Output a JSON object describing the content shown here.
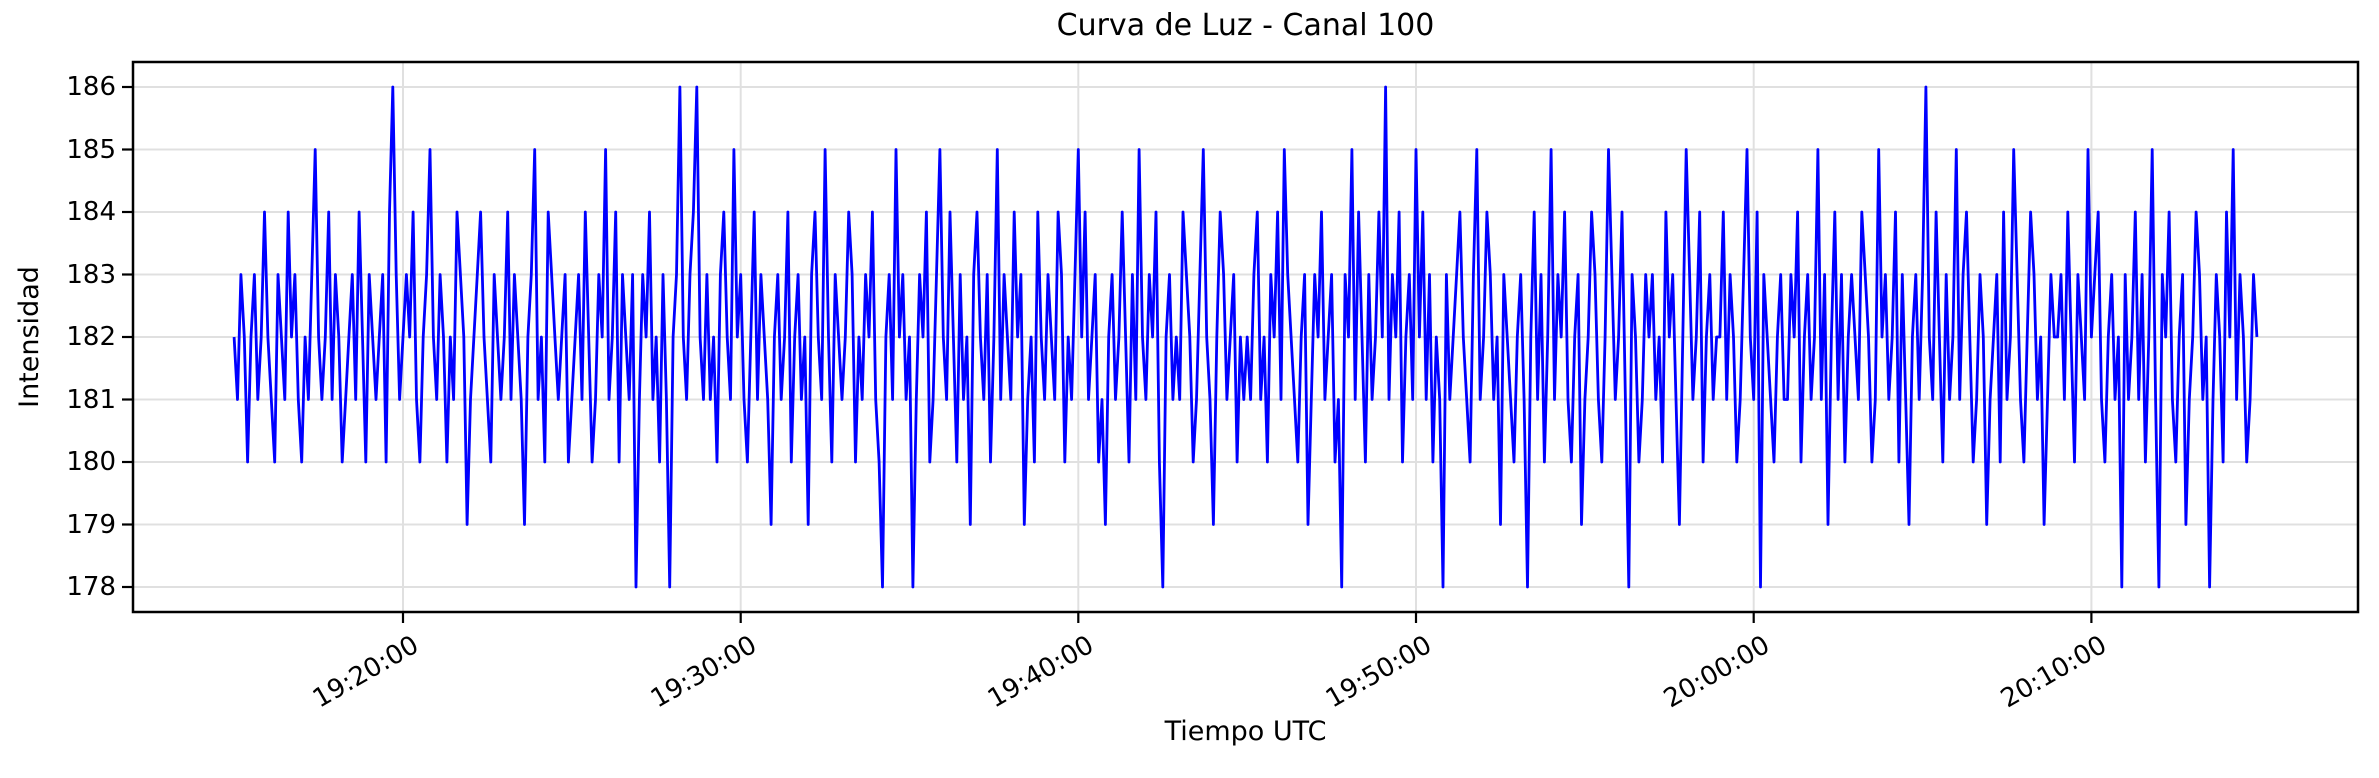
{
  "colors": {
    "line": "#0000ff",
    "grid": "#e0e0e0",
    "axes": "#000000",
    "text": "#000000",
    "background": "#ffffff"
  },
  "chart_data": {
    "type": "line",
    "title": "Curva de Luz - Canal 100",
    "xlabel": "Tiempo UTC",
    "ylabel": "Intensidad",
    "legend": null,
    "grid": true,
    "line_color": "#0000ff",
    "ylim": [
      177.6,
      186.4
    ],
    "y_ticks": [
      178,
      179,
      180,
      181,
      182,
      183,
      184,
      185,
      186
    ],
    "x_ticks": [
      {
        "label": "19:20:00",
        "offset_seconds": 300
      },
      {
        "label": "19:30:00",
        "offset_seconds": 900
      },
      {
        "label": "19:40:00",
        "offset_seconds": 1500
      },
      {
        "label": "19:50:00",
        "offset_seconds": 2100
      },
      {
        "label": "20:00:00",
        "offset_seconds": 2700
      },
      {
        "label": "20:10:00",
        "offset_seconds": 3300
      }
    ],
    "x_start_utc": "19:15:00",
    "x_step_seconds": 6,
    "x_margin_fraction": 0.05,
    "y_min_observed": 178,
    "y_max_observed": 186,
    "values": [
      182,
      181,
      183,
      182,
      180,
      182,
      183,
      181,
      182,
      184,
      182,
      181,
      180,
      183,
      182,
      181,
      184,
      182,
      183,
      181,
      180,
      182,
      181,
      183,
      185,
      182,
      181,
      182,
      184,
      181,
      183,
      182,
      180,
      181,
      182,
      183,
      181,
      184,
      182,
      180,
      183,
      182,
      181,
      182,
      183,
      180,
      184,
      186,
      183,
      181,
      182,
      183,
      182,
      184,
      181,
      180,
      182,
      183,
      185,
      182,
      181,
      183,
      182,
      180,
      182,
      181,
      184,
      183,
      182,
      179,
      181,
      182,
      183,
      184,
      182,
      181,
      180,
      183,
      182,
      181,
      182,
      184,
      181,
      183,
      182,
      181,
      179,
      182,
      183,
      185,
      181,
      182,
      180,
      184,
      183,
      182,
      181,
      182,
      183,
      180,
      181,
      182,
      183,
      181,
      184,
      182,
      180,
      181,
      183,
      182,
      185,
      181,
      182,
      184,
      180,
      183,
      182,
      181,
      183,
      178,
      181,
      183,
      182,
      184,
      181,
      182,
      180,
      183,
      181,
      178,
      182,
      183,
      186,
      182,
      181,
      183,
      184,
      186,
      182,
      181,
      183,
      181,
      182,
      180,
      183,
      184,
      182,
      181,
      185,
      182,
      183,
      181,
      180,
      182,
      184,
      181,
      183,
      182,
      181,
      179,
      182,
      183,
      181,
      182,
      184,
      180,
      182,
      183,
      181,
      182,
      179,
      183,
      184,
      182,
      181,
      185,
      182,
      180,
      183,
      182,
      181,
      182,
      184,
      183,
      180,
      182,
      181,
      183,
      182,
      184,
      181,
      180,
      178,
      182,
      183,
      181,
      185,
      182,
      183,
      181,
      182,
      178,
      181,
      183,
      182,
      184,
      180,
      181,
      183,
      185,
      182,
      181,
      184,
      182,
      180,
      183,
      181,
      182,
      179,
      183,
      184,
      182,
      181,
      183,
      180,
      182,
      185,
      181,
      183,
      182,
      181,
      184,
      182,
      183,
      179,
      181,
      182,
      180,
      184,
      182,
      181,
      183,
      182,
      181,
      184,
      183,
      180,
      182,
      181,
      183,
      185,
      182,
      184,
      181,
      182,
      183,
      180,
      181,
      179,
      182,
      183,
      181,
      182,
      184,
      182,
      180,
      183,
      181,
      185,
      182,
      181,
      183,
      182,
      184,
      180,
      178,
      182,
      183,
      181,
      182,
      181,
      184,
      183,
      182,
      180,
      181,
      183,
      185,
      182,
      181,
      179,
      182,
      184,
      183,
      181,
      182,
      183,
      180,
      182,
      181,
      182,
      181,
      183,
      184,
      181,
      182,
      180,
      183,
      182,
      184,
      181,
      185,
      183,
      182,
      181,
      180,
      182,
      183,
      179,
      181,
      183,
      182,
      184,
      181,
      182,
      183,
      180,
      181,
      178,
      183,
      182,
      185,
      181,
      184,
      182,
      180,
      183,
      181,
      182,
      184,
      182,
      186,
      181,
      183,
      182,
      184,
      180,
      182,
      183,
      181,
      185,
      182,
      184,
      181,
      183,
      180,
      182,
      181,
      178,
      183,
      181,
      182,
      183,
      184,
      182,
      181,
      180,
      183,
      185,
      181,
      182,
      184,
      183,
      181,
      182,
      179,
      183,
      182,
      181,
      180,
      182,
      183,
      181,
      178,
      182,
      184,
      181,
      183,
      180,
      182,
      185,
      181,
      183,
      182,
      184,
      181,
      180,
      182,
      183,
      179,
      181,
      182,
      184,
      183,
      181,
      180,
      182,
      185,
      183,
      181,
      182,
      184,
      181,
      178,
      183,
      182,
      180,
      181,
      183,
      182,
      183,
      181,
      182,
      180,
      184,
      182,
      183,
      181,
      179,
      182,
      185,
      183,
      181,
      182,
      184,
      180,
      182,
      183,
      181,
      182,
      182,
      184,
      181,
      183,
      182,
      180,
      181,
      183,
      185,
      182,
      181,
      184,
      178,
      183,
      182,
      181,
      180,
      182,
      183,
      181,
      181,
      183,
      182,
      184,
      180,
      182,
      183,
      181,
      182,
      185,
      181,
      183,
      179,
      182,
      184,
      181,
      183,
      180,
      182,
      183,
      182,
      181,
      184,
      183,
      182,
      180,
      181,
      185,
      182,
      183,
      181,
      182,
      184,
      180,
      183,
      181,
      179,
      182,
      183,
      181,
      183,
      186,
      182,
      181,
      184,
      182,
      180,
      183,
      181,
      182,
      185,
      181,
      183,
      184,
      182,
      180,
      181,
      183,
      182,
      179,
      181,
      182,
      183,
      180,
      184,
      181,
      182,
      185,
      183,
      181,
      180,
      182,
      184,
      183,
      181,
      182,
      179,
      181,
      183,
      182,
      182,
      183,
      181,
      184,
      182,
      180,
      183,
      182,
      181,
      185,
      182,
      183,
      184,
      181,
      180,
      182,
      183,
      181,
      182,
      178,
      183,
      181,
      182,
      184,
      181,
      183,
      180,
      182,
      185,
      181,
      178,
      183,
      182,
      184,
      181,
      180,
      182,
      183,
      179,
      181,
      182,
      184,
      183,
      181,
      182,
      178,
      181,
      183,
      182,
      180,
      184,
      182,
      185,
      181,
      183,
      182,
      180,
      181,
      183,
      182
    ]
  }
}
